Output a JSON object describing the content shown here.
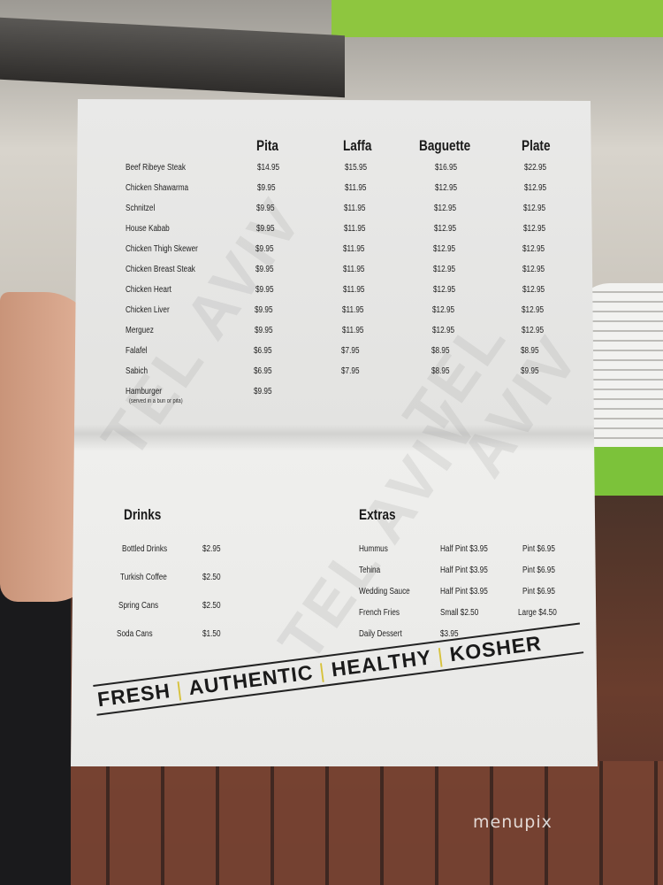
{
  "menu": {
    "columns": [
      "Pita",
      "Laffa",
      "Baguette",
      "Plate"
    ],
    "items": [
      {
        "name": "Beef Ribeye Steak",
        "prices": [
          "$14.95",
          "$15.95",
          "$16.95",
          "$22.95"
        ]
      },
      {
        "name": "Chicken Shawarma",
        "prices": [
          "$9.95",
          "$11.95",
          "$12.95",
          "$12.95"
        ]
      },
      {
        "name": "Schnitzel",
        "prices": [
          "$9.95",
          "$11.95",
          "$12.95",
          "$12.95"
        ]
      },
      {
        "name": "House Kabab",
        "prices": [
          "$9.95",
          "$11.95",
          "$12.95",
          "$12.95"
        ]
      },
      {
        "name": "Chicken Thigh Skewer",
        "prices": [
          "$9.95",
          "$11.95",
          "$12.95",
          "$12.95"
        ]
      },
      {
        "name": "Chicken Breast Steak",
        "prices": [
          "$9.95",
          "$11.95",
          "$12.95",
          "$12.95"
        ]
      },
      {
        "name": "Chicken Heart",
        "prices": [
          "$9.95",
          "$11.95",
          "$12.95",
          "$12.95"
        ]
      },
      {
        "name": "Chicken Liver",
        "prices": [
          "$9.95",
          "$11.95",
          "$12.95",
          "$12.95"
        ]
      },
      {
        "name": "Merguez",
        "prices": [
          "$9.95",
          "$11.95",
          "$12.95",
          "$12.95"
        ]
      },
      {
        "name": "Falafel",
        "prices": [
          "$6.95",
          "$7.95",
          "$8.95",
          "$8.95"
        ]
      },
      {
        "name": "Sabich",
        "prices": [
          "$6.95",
          "$7.95",
          "$8.95",
          "$9.95"
        ]
      },
      {
        "name": "Hamburger",
        "note": "(served in a bun or pita)",
        "prices": [
          "$9.95"
        ]
      }
    ]
  },
  "drinks": {
    "title": "Drinks",
    "items": [
      {
        "name": "Bottled Drinks",
        "price": "$2.95"
      },
      {
        "name": "Turkish Coffee",
        "price": "$2.50"
      },
      {
        "name": "Spring Cans",
        "price": "$2.50"
      },
      {
        "name": "Soda Cans",
        "price": "$1.50"
      }
    ]
  },
  "extras": {
    "title": "Extras",
    "items": [
      {
        "name": "Hummus",
        "small": "Half Pint $3.95",
        "large": "Pint $6.95"
      },
      {
        "name": "Tehina",
        "small": "Half Pint $3.95",
        "large": "Pint $6.95"
      },
      {
        "name": "Wedding Sauce",
        "small": "Half Pint $3.95",
        "large": "Pint $6.95"
      },
      {
        "name": "French Fries",
        "small": "Small   $2.50",
        "large": "Large $4.50"
      },
      {
        "name": "Daily Dessert",
        "small": "$3.95",
        "large": ""
      }
    ]
  },
  "slogan": [
    "FRESH",
    "AUTHENTIC",
    "HEALTHY",
    "KOSHER"
  ],
  "watermark_text": "TEL AVIV",
  "photo_watermark": "menupix",
  "colors": {
    "separator": "#d7c23a",
    "paper": "#ebebea"
  }
}
